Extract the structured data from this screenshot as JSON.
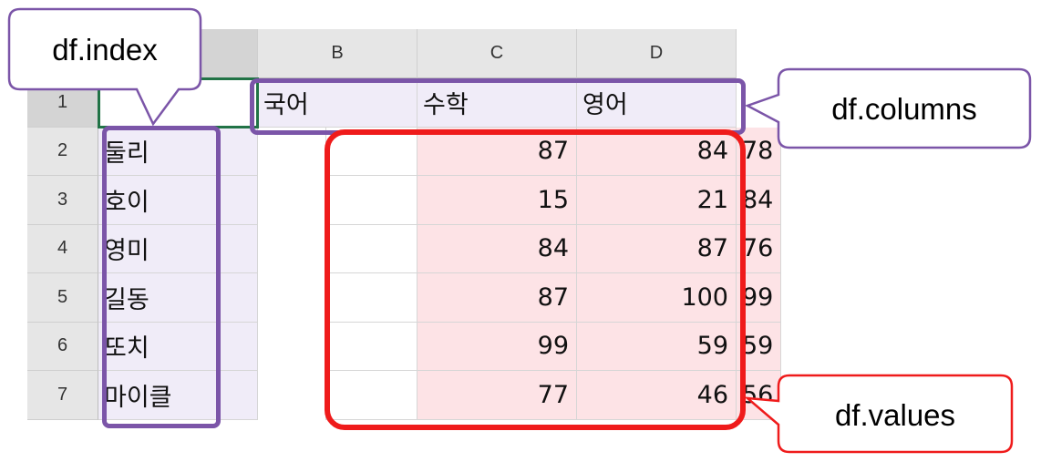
{
  "spreadsheet": {
    "column_headers": [
      "",
      "B",
      "C",
      "D"
    ],
    "row_numbers": [
      "1",
      "2",
      "3",
      "4",
      "5",
      "6",
      "7"
    ],
    "header_row": [
      "",
      "국어",
      "수학",
      "영어"
    ],
    "rows": [
      {
        "label": "둘리",
        "values": [
          "87",
          "84",
          "78"
        ]
      },
      {
        "label": "호이",
        "values": [
          "15",
          "21",
          "84"
        ]
      },
      {
        "label": "영미",
        "values": [
          "84",
          "87",
          "76"
        ]
      },
      {
        "label": "길동",
        "values": [
          "87",
          "100",
          "99"
        ]
      },
      {
        "label": "또치",
        "values": [
          "99",
          "59",
          "59"
        ]
      },
      {
        "label": "마이클",
        "values": [
          "77",
          "46",
          "56"
        ]
      }
    ]
  },
  "callouts": {
    "index": "df.index",
    "columns": "df.columns",
    "values": "df.values"
  },
  "colors": {
    "index_highlight": "#7b55a8",
    "values_highlight": "#ef1b1b",
    "lavender_fill": "#f0ecf8",
    "pink_fill": "#fde3e6",
    "active_cell_border": "#217346"
  }
}
